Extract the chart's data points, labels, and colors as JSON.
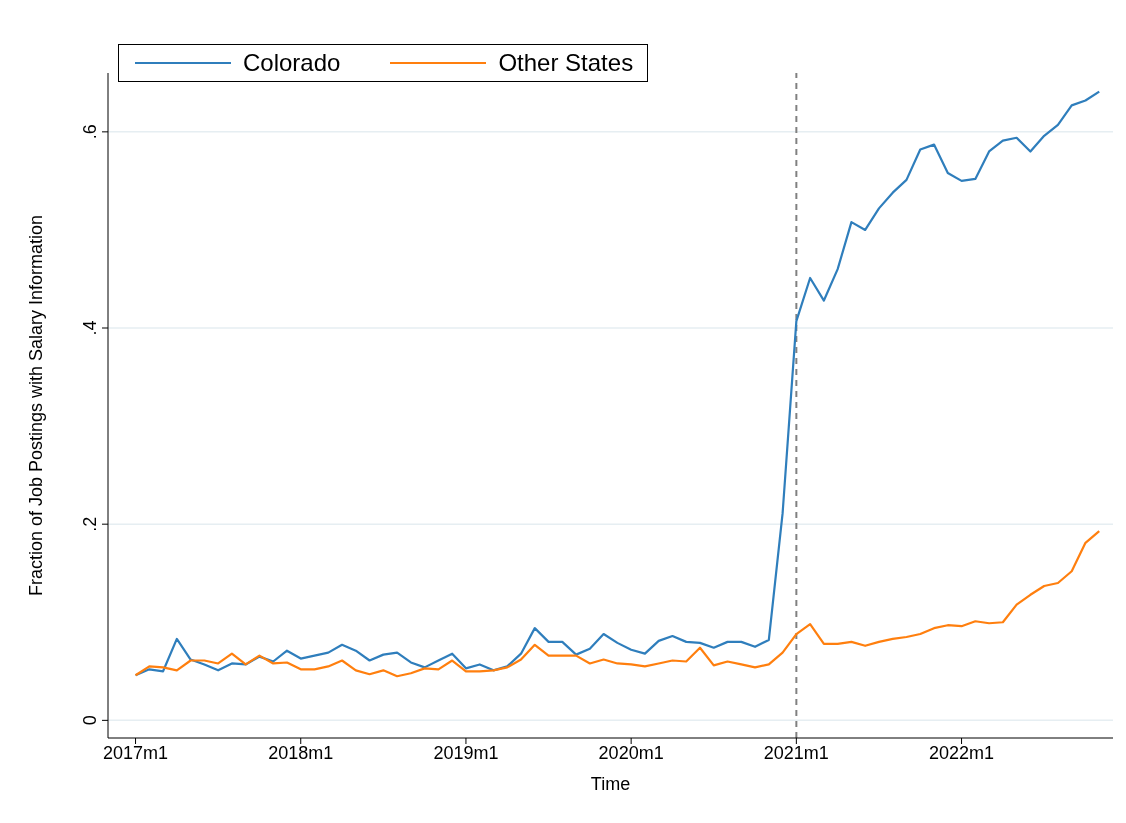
{
  "chart_data": {
    "type": "line",
    "xlabel": "Time",
    "ylabel": "Fraction of Job Postings with Salary Information",
    "x": [
      "2017-01",
      "2017-02",
      "2017-03",
      "2017-04",
      "2017-05",
      "2017-06",
      "2017-07",
      "2017-08",
      "2017-09",
      "2017-10",
      "2017-11",
      "2017-12",
      "2018-01",
      "2018-02",
      "2018-03",
      "2018-04",
      "2018-05",
      "2018-06",
      "2018-07",
      "2018-08",
      "2018-09",
      "2018-10",
      "2018-11",
      "2018-12",
      "2019-01",
      "2019-02",
      "2019-03",
      "2019-04",
      "2019-05",
      "2019-06",
      "2019-07",
      "2019-08",
      "2019-09",
      "2019-10",
      "2019-11",
      "2019-12",
      "2020-01",
      "2020-02",
      "2020-03",
      "2020-04",
      "2020-05",
      "2020-06",
      "2020-07",
      "2020-08",
      "2020-09",
      "2020-10",
      "2020-11",
      "2020-12",
      "2021-01",
      "2021-02",
      "2021-03",
      "2021-04",
      "2021-05",
      "2021-06",
      "2021-07",
      "2021-08",
      "2021-09",
      "2021-10",
      "2021-11",
      "2021-12",
      "2022-01",
      "2022-02",
      "2022-03",
      "2022-04",
      "2022-05",
      "2022-06",
      "2022-07",
      "2022-08",
      "2022-09",
      "2022-10",
      "2022-11"
    ],
    "series": [
      {
        "name": "Colorado",
        "color": "#2f7ebc",
        "values": [
          0.046,
          0.052,
          0.05,
          0.083,
          0.062,
          0.057,
          0.051,
          0.058,
          0.057,
          0.065,
          0.06,
          0.071,
          0.063,
          0.066,
          0.069,
          0.077,
          0.071,
          0.061,
          0.067,
          0.069,
          0.059,
          0.054,
          0.061,
          0.068,
          0.053,
          0.057,
          0.051,
          0.055,
          0.068,
          0.094,
          0.08,
          0.08,
          0.067,
          0.073,
          0.088,
          0.079,
          0.072,
          0.068,
          0.081,
          0.086,
          0.08,
          0.079,
          0.074,
          0.08,
          0.08,
          0.075,
          0.082,
          0.211,
          0.407,
          0.451,
          0.428,
          0.46,
          0.508,
          0.5,
          0.522,
          0.538,
          0.551,
          0.582,
          0.587,
          0.558,
          0.55,
          0.552,
          0.58,
          0.591,
          0.594,
          0.58,
          0.596,
          0.607,
          0.627,
          0.632,
          0.641
        ]
      },
      {
        "name": "Other States",
        "color": "#ff7f0e",
        "values": [
          0.046,
          0.055,
          0.054,
          0.051,
          0.061,
          0.061,
          0.058,
          0.068,
          0.057,
          0.066,
          0.058,
          0.059,
          0.052,
          0.052,
          0.055,
          0.061,
          0.051,
          0.047,
          0.051,
          0.045,
          0.048,
          0.053,
          0.052,
          0.061,
          0.05,
          0.05,
          0.051,
          0.054,
          0.062,
          0.077,
          0.066,
          0.066,
          0.066,
          0.058,
          0.062,
          0.058,
          0.057,
          0.055,
          0.058,
          0.061,
          0.06,
          0.074,
          0.056,
          0.06,
          0.057,
          0.054,
          0.057,
          0.069,
          0.088,
          0.098,
          0.078,
          0.078,
          0.08,
          0.076,
          0.08,
          0.083,
          0.085,
          0.088,
          0.094,
          0.097,
          0.096,
          0.101,
          0.099,
          0.1,
          0.118,
          0.128,
          0.137,
          0.14,
          0.152,
          0.181,
          0.193
        ]
      }
    ],
    "xlim": [
      "2016-11",
      "2022-12"
    ],
    "xticks": [
      {
        "value": "2017-01",
        "label": "2017m1"
      },
      {
        "value": "2018-01",
        "label": "2018m1"
      },
      {
        "value": "2019-01",
        "label": "2019m1"
      },
      {
        "value": "2020-01",
        "label": "2020m1"
      },
      {
        "value": "2021-01",
        "label": "2021m1"
      },
      {
        "value": "2022-01",
        "label": "2022m1"
      }
    ],
    "ylim": [
      -0.018,
      0.66
    ],
    "yticks": [
      0,
      {
        "value": 0.2,
        "label": ".2"
      },
      {
        "value": 0.4,
        "label": ".4"
      },
      {
        "value": 0.6,
        "label": ".6"
      }
    ],
    "ref_lines": [
      {
        "axis": "x",
        "value": "2021-01",
        "color": "#808080",
        "line_style": "dashed"
      }
    ],
    "grid": "y",
    "legend": "top left",
    "marker": "none",
    "line_style": "solid"
  }
}
